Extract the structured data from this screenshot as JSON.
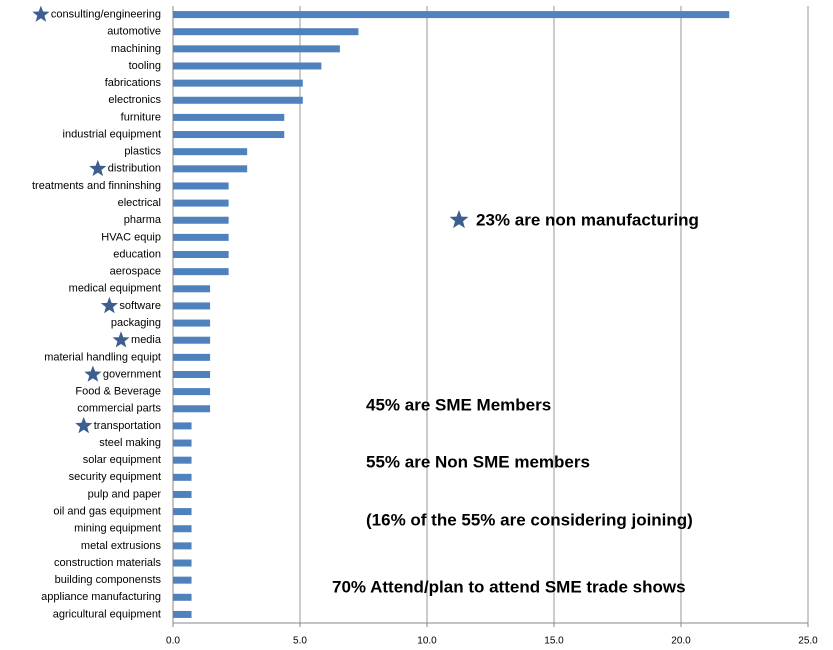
{
  "chart_data": {
    "type": "barh",
    "categories": [
      "consulting/engineering",
      "automotive",
      "machining",
      "tooling",
      "fabrications",
      "electronics",
      "furniture",
      "industrial equipment",
      "plastics",
      "distribution",
      "treatments and finninshing",
      "electrical",
      "pharma",
      "HVAC equip",
      "education",
      "aerospace",
      "medical equipment",
      "software",
      "packaging",
      "media",
      "material handling equipt",
      "government",
      "Food & Beverage",
      "commercial parts",
      "transportation",
      "steel making",
      "solar equipment",
      "security equipment",
      "pulp and paper",
      "oil and gas equipment",
      "mining equipment",
      "metal extrusions",
      "construction materials",
      "building componensts",
      "appliance manufacturing",
      "agricultural equipment"
    ],
    "values": [
      21.9,
      7.3,
      6.57,
      5.84,
      5.11,
      5.11,
      4.38,
      4.38,
      2.92,
      2.92,
      2.19,
      2.19,
      2.19,
      2.19,
      2.19,
      2.19,
      1.46,
      1.46,
      1.46,
      1.46,
      1.46,
      1.46,
      1.46,
      1.46,
      0.73,
      0.73,
      0.73,
      0.73,
      0.73,
      0.73,
      0.73,
      0.73,
      0.73,
      0.73,
      0.73,
      0.73
    ],
    "starred": [
      true,
      false,
      false,
      false,
      false,
      false,
      false,
      false,
      false,
      true,
      false,
      false,
      false,
      false,
      false,
      false,
      false,
      true,
      false,
      true,
      false,
      true,
      false,
      false,
      true,
      false,
      false,
      false,
      false,
      false,
      false,
      false,
      false,
      false,
      false,
      false
    ],
    "color": "#4f81bd",
    "xlim": [
      0,
      25
    ],
    "xticks": [
      {
        "value": 0,
        "label": "0.0"
      },
      {
        "value": 5,
        "label": "5.0"
      },
      {
        "value": 10,
        "label": "10.0"
      },
      {
        "value": 15,
        "label": "15.0"
      },
      {
        "value": 20,
        "label": "20.0"
      },
      {
        "value": 25,
        "label": "25.0"
      }
    ],
    "grid": true,
    "annotations": [
      "23% are non manufacturing",
      "45% are SME Members",
      "55% are Non SME members",
      "(16% of the 55% are considering joining)",
      "70% Attend/plan to attend SME trade shows"
    ]
  }
}
